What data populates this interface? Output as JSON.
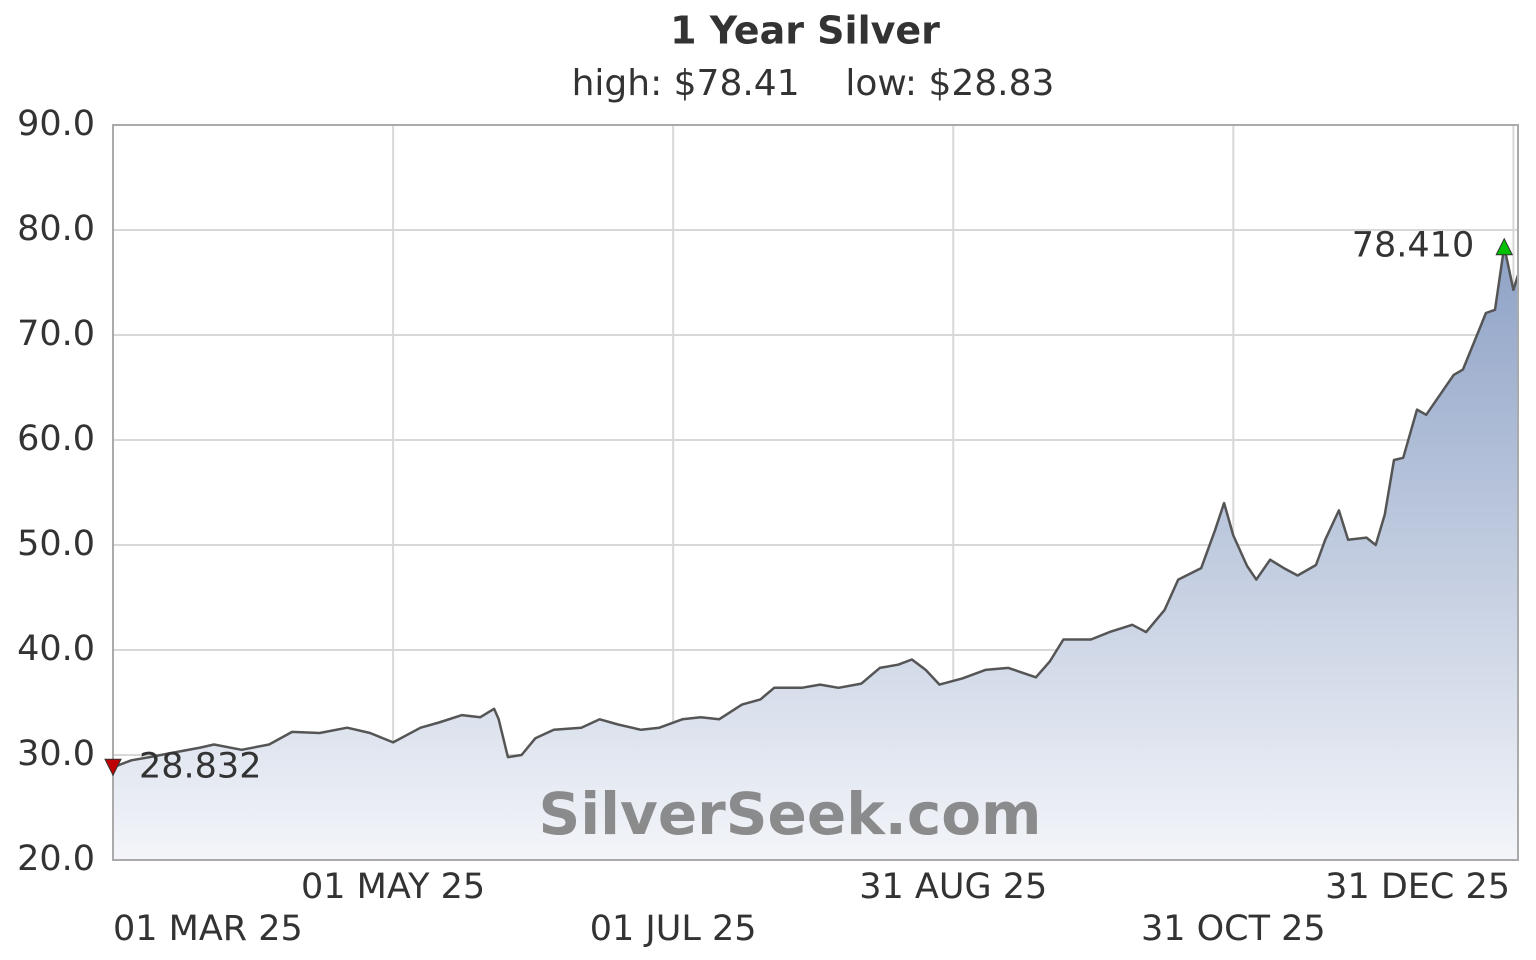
{
  "chart_data": {
    "type": "area-line",
    "title": "1 Year Silver",
    "subtitle": "high: $78.41    low: $28.83",
    "watermark": "SilverSeek.com",
    "x": [
      0,
      4,
      8,
      14,
      19,
      22,
      28,
      34,
      39,
      45,
      51,
      56,
      61,
      67,
      71,
      76,
      80,
      83,
      84,
      86,
      89,
      92,
      96,
      102,
      106,
      110,
      115,
      119,
      124,
      128,
      132,
      137,
      141,
      144,
      150,
      154,
      158,
      163,
      167,
      171,
      174,
      177,
      180,
      185,
      190,
      195,
      201,
      204,
      207,
      213,
      217,
      222,
      225,
      229,
      232,
      237,
      240,
      242,
      244,
      247,
      249,
      252,
      255,
      258,
      262,
      264,
      267,
      269,
      273,
      275,
      277,
      279,
      281,
      284,
      286,
      289,
      292,
      294,
      298,
      299,
      301,
      303,
      305,
      306
    ],
    "series": [
      {
        "name": "Silver",
        "color": "#555555",
        "values": [
          28.832,
          29.5,
          29.8,
          30.3,
          30.7,
          31.0,
          30.5,
          31.0,
          32.2,
          32.1,
          32.6,
          32.1,
          31.2,
          32.6,
          33.1,
          33.8,
          33.6,
          34.4,
          33.4,
          29.8,
          30.0,
          31.6,
          32.4,
          32.6,
          33.4,
          32.9,
          32.4,
          32.6,
          33.4,
          33.6,
          33.4,
          34.8,
          35.3,
          36.4,
          36.4,
          36.7,
          36.4,
          36.8,
          38.3,
          38.6,
          39.1,
          38.1,
          36.7,
          37.3,
          38.1,
          38.3,
          37.4,
          38.9,
          41.0,
          41.0,
          41.7,
          42.4,
          41.7,
          43.8,
          46.7,
          47.8,
          51.4,
          54.0,
          50.9,
          48.0,
          46.7,
          48.6,
          47.8,
          47.1,
          48.1,
          50.5,
          53.3,
          50.5,
          50.7,
          50.0,
          52.9,
          58.1,
          58.3,
          62.9,
          62.4,
          64.3,
          66.2,
          66.7,
          71.0,
          72.1,
          72.4,
          78.41,
          74.3,
          75.7
        ]
      }
    ],
    "markers": [
      {
        "x": 303,
        "value": 78.41,
        "label": "78.410",
        "color": "#00c000",
        "direction": "up"
      },
      {
        "x": 0,
        "value": 28.832,
        "label": "28.832",
        "color": "#c00000",
        "direction": "down"
      }
    ],
    "xlim": [
      0,
      306
    ],
    "xticks": [
      {
        "value": 0,
        "label": "01 MAR 25"
      },
      {
        "value": 61,
        "label": "01 MAY 25"
      },
      {
        "value": 122,
        "label": "01 JUL 25"
      },
      {
        "value": 183,
        "label": "31 AUG 25"
      },
      {
        "value": 244,
        "label": "31 OCT 25"
      },
      {
        "value": 305,
        "label": "31 DEC 25"
      }
    ],
    "ylim": [
      20,
      90
    ],
    "yticks": [
      {
        "value": 20,
        "label": "20.0"
      },
      {
        "value": 30,
        "label": "30.0"
      },
      {
        "value": 40,
        "label": "40.0"
      },
      {
        "value": 50,
        "label": "50.0"
      },
      {
        "value": 60,
        "label": "60.0"
      },
      {
        "value": 70,
        "label": "70.0"
      },
      {
        "value": 80,
        "label": "80.0"
      },
      {
        "value": 90,
        "label": "90.0"
      }
    ],
    "grid": true
  }
}
